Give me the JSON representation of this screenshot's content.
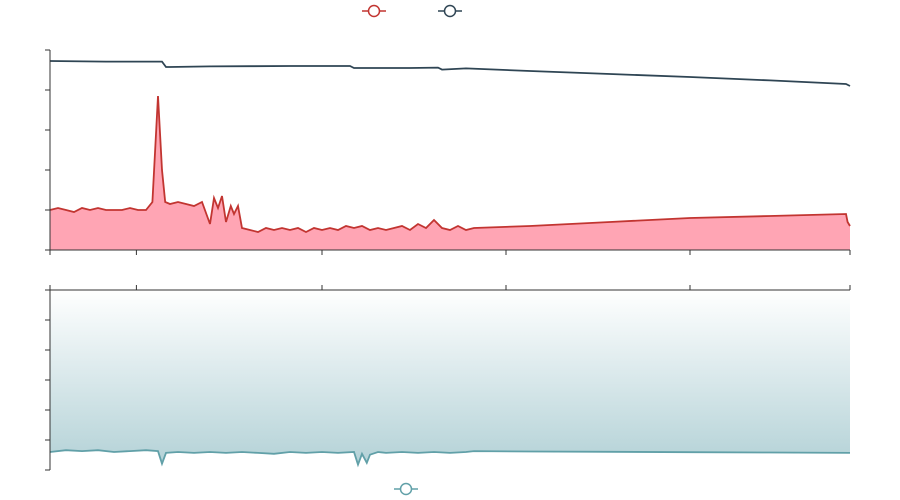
{
  "chart_data": [
    {
      "type": "area",
      "panel": "top",
      "title": "",
      "xlabel": "",
      "ylabel": "",
      "xlim": [
        0,
        100
      ],
      "ylim": [
        0,
        100
      ],
      "grid": false,
      "legend": "top-center",
      "series": [
        {
          "name": "",
          "color": "#c23531",
          "fill": "#ffa5b4",
          "kind": "area",
          "x": [
            0,
            1,
            2,
            3,
            4,
            5,
            6,
            7,
            8,
            9,
            10,
            11,
            12,
            12.8,
            13.5,
            14,
            14.4,
            15,
            16,
            17,
            18,
            19,
            20,
            20.5,
            21,
            21.5,
            22,
            22.6,
            23,
            23.5,
            24,
            25,
            26,
            27,
            28,
            29,
            30,
            31,
            32,
            33,
            34,
            35,
            36,
            37,
            38,
            39,
            40,
            41,
            42,
            43,
            44,
            45,
            46,
            47,
            48,
            49,
            50,
            51,
            52,
            53,
            60,
            70,
            80,
            90,
            99.5,
            99.7,
            100
          ],
          "y": [
            20,
            21,
            20,
            19,
            21,
            20,
            21,
            20,
            20,
            20,
            21,
            20,
            20,
            24,
            77,
            40,
            24,
            23,
            24,
            23,
            22,
            24,
            13,
            26,
            21,
            27,
            14,
            22,
            18,
            22,
            11,
            10,
            9,
            11,
            10,
            11,
            10,
            11,
            9,
            11,
            10,
            11,
            10,
            12,
            11,
            12,
            10,
            11,
            10,
            11,
            12,
            10,
            13,
            11,
            15,
            11,
            10,
            12,
            10,
            11,
            12,
            14,
            16,
            17,
            18,
            14,
            12
          ],
          "note_spikes": true
        },
        {
          "name": "",
          "color": "#2f4554",
          "kind": "line",
          "x": [
            0,
            7,
            14,
            14.5,
            15,
            20,
            25,
            30,
            37.5,
            38,
            45,
            48.5,
            49,
            52,
            60,
            70,
            80,
            90,
            99.5,
            100
          ],
          "y": [
            94.5,
            94.2,
            94.2,
            91.5,
            91.5,
            91.8,
            91.9,
            92.0,
            92.0,
            91.0,
            91.0,
            91.2,
            90.2,
            90.8,
            89.5,
            88.0,
            86.5,
            84.8,
            83.0,
            82.0
          ]
        }
      ]
    },
    {
      "type": "area",
      "panel": "bottom",
      "title": "",
      "xlabel": "",
      "ylabel": "",
      "xlim": [
        0,
        100
      ],
      "ylim": [
        0,
        100
      ],
      "grid": false,
      "legend": "bottom-center",
      "series": [
        {
          "name": "",
          "color": "#61a0a8",
          "fill_gradient": [
            "#b4d2d7",
            "#ffffff"
          ],
          "kind": "area",
          "x": [
            0,
            2,
            4,
            6,
            8,
            10,
            12,
            13.5,
            14,
            14.5,
            16,
            18,
            20,
            22,
            24,
            26,
            28,
            30,
            32,
            34,
            36,
            38,
            38.5,
            39,
            39.6,
            40,
            41,
            42,
            44,
            46,
            48,
            50,
            52,
            53,
            60,
            70,
            80,
            90,
            100
          ],
          "y": [
            10,
            11,
            10.5,
            11,
            10,
            10.5,
            11,
            10.5,
            3.5,
            9.5,
            10,
            9.5,
            10,
            9.5,
            10,
            9.5,
            9,
            10,
            9.5,
            10,
            9.5,
            10,
            3,
            9,
            4,
            8.5,
            10,
            9.5,
            10,
            9.5,
            10,
            9.5,
            10,
            10.5,
            10.3,
            10.1,
            9.9,
            9.7,
            9.5
          ]
        }
      ]
    }
  ]
}
